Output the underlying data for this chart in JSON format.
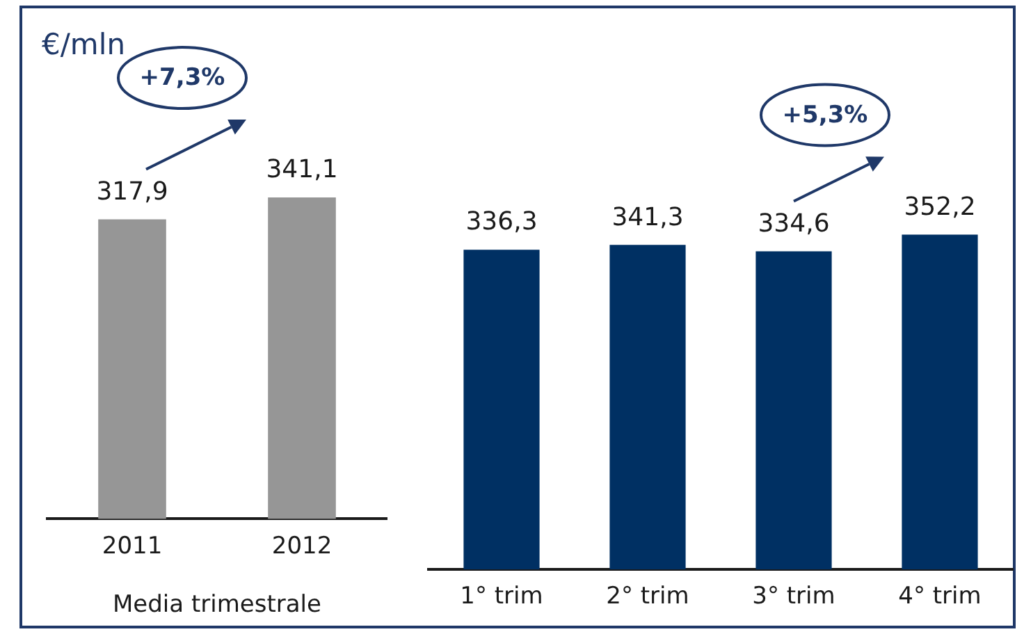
{
  "chart_data": [
    {
      "type": "bar",
      "title": "€/mln",
      "categories": [
        "2011",
        "2012"
      ],
      "values": [
        317.9,
        341.1
      ],
      "colors": [
        "#969696",
        "#969696"
      ],
      "value_labels": [
        "317,9",
        "341,1"
      ],
      "xlabel": "Media trimestrale",
      "tick_labels": "x",
      "grid": false,
      "annotations": [
        "+7,3%"
      ]
    },
    {
      "type": "bar",
      "categories": [
        "1° trim",
        "2° trim",
        "3° trim",
        "4° trim"
      ],
      "values": [
        336.3,
        341.3,
        334.6,
        352.2
      ],
      "colors": [
        "#003063",
        "#003063",
        "#003063",
        "#003063"
      ],
      "value_labels": [
        "336,3",
        "341,3",
        "334,6",
        "352,2"
      ],
      "tick_labels": "x",
      "grid": false,
      "annotations": [
        "+5,3%"
      ]
    }
  ]
}
